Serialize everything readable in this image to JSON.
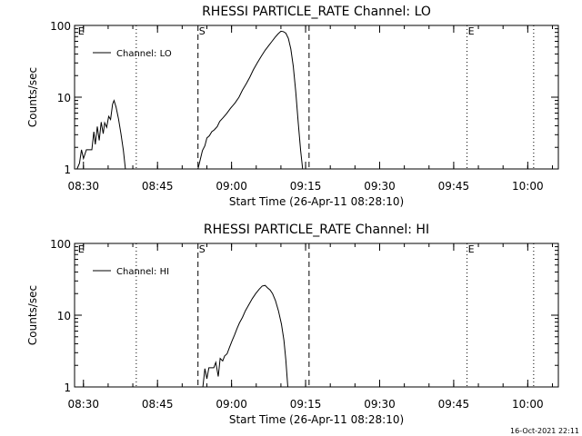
{
  "chart_data": [
    {
      "type": "line",
      "title": "RHESSI PARTICLE_RATE Channel: LO",
      "xlabel": "Start Time (26-Apr-11 08:28:10)",
      "ylabel": "Counts/sec",
      "yscale": "log",
      "ylim": [
        1,
        100
      ],
      "xlim_minutes": [
        0,
        98
      ],
      "yticks": [
        {
          "value": 1,
          "label": "1"
        },
        {
          "value": 10,
          "label": "10"
        },
        {
          "value": 100,
          "label": "100"
        }
      ],
      "xticks": [
        {
          "minute": 1.8,
          "label": "08:30"
        },
        {
          "minute": 16.8,
          "label": "08:45"
        },
        {
          "minute": 31.8,
          "label": "09:00"
        },
        {
          "minute": 46.8,
          "label": "09:15"
        },
        {
          "minute": 61.8,
          "label": "09:30"
        },
        {
          "minute": 76.8,
          "label": "09:45"
        },
        {
          "minute": 91.8,
          "label": "10:00"
        }
      ],
      "legend": "Channel: LO",
      "legend_position": "top-left",
      "markers": [
        {
          "minute": 0.5,
          "label": "E",
          "style": "none"
        },
        {
          "minute": 12.5,
          "label": "",
          "style": "dotted"
        },
        {
          "minute": 25.0,
          "label": "S",
          "style": "dashed"
        },
        {
          "minute": 47.5,
          "label": "",
          "style": "dashed"
        },
        {
          "minute": 79.5,
          "label": "E",
          "style": "dotted"
        },
        {
          "minute": 93.0,
          "label": "",
          "style": "dotted"
        }
      ],
      "series": [
        {
          "name": "Channel: LO",
          "segments": [
            [
              [
                0.5,
                1.0
              ],
              [
                1.0,
                1.2
              ],
              [
                1.4,
                1.85
              ],
              [
                1.8,
                1.4
              ],
              [
                2.4,
                1.85
              ],
              [
                3.0,
                1.85
              ],
              [
                3.5,
                1.85
              ],
              [
                3.9,
                3.3
              ],
              [
                4.2,
                2.2
              ],
              [
                4.6,
                3.9
              ],
              [
                5.0,
                2.5
              ],
              [
                5.4,
                4.5
              ],
              [
                5.8,
                3.1
              ],
              [
                6.1,
                4.4
              ],
              [
                6.5,
                3.8
              ],
              [
                6.9,
                5.4
              ],
              [
                7.3,
                4.9
              ],
              [
                7.7,
                8.0
              ],
              [
                8.0,
                9.0
              ],
              [
                8.4,
                7.3
              ],
              [
                8.9,
                5.0
              ],
              [
                9.4,
                3.1
              ],
              [
                9.9,
                1.8
              ],
              [
                10.3,
                1.0
              ]
            ],
            [
              [
                25.0,
                1.0
              ],
              [
                25.4,
                1.3
              ],
              [
                25.9,
                1.8
              ],
              [
                26.4,
                2.1
              ],
              [
                26.8,
                2.7
              ],
              [
                27.3,
                2.9
              ],
              [
                27.8,
                3.3
              ],
              [
                28.3,
                3.5
              ],
              [
                28.9,
                3.9
              ],
              [
                29.4,
                4.6
              ],
              [
                30.0,
                5.1
              ],
              [
                30.8,
                5.9
              ],
              [
                31.6,
                7.0
              ],
              [
                32.5,
                8.3
              ],
              [
                33.3,
                10.0
              ],
              [
                34.0,
                12.5
              ],
              [
                34.8,
                15.5
              ],
              [
                35.5,
                19.0
              ],
              [
                36.2,
                24.0
              ],
              [
                37.0,
                30.0
              ],
              [
                37.8,
                37.0
              ],
              [
                38.6,
                45.0
              ],
              [
                39.3,
                52.0
              ],
              [
                40.0,
                60.0
              ],
              [
                40.6,
                68.0
              ],
              [
                41.2,
                76.0
              ],
              [
                41.8,
                83.0
              ],
              [
                42.3,
                82.0
              ],
              [
                42.8,
                78.0
              ],
              [
                43.3,
                66.0
              ],
              [
                43.8,
                47.0
              ],
              [
                44.3,
                27.0
              ],
              [
                44.8,
                12.0
              ],
              [
                45.3,
                4.5
              ],
              [
                45.8,
                1.8
              ],
              [
                46.2,
                1.0
              ]
            ]
          ]
        }
      ]
    },
    {
      "type": "line",
      "title": "RHESSI PARTICLE_RATE Channel: HI",
      "xlabel": "Start Time (26-Apr-11 08:28:10)",
      "ylabel": "Counts/sec",
      "yscale": "log",
      "ylim": [
        1,
        100
      ],
      "xlim_minutes": [
        0,
        98
      ],
      "yticks": [
        {
          "value": 1,
          "label": "1"
        },
        {
          "value": 10,
          "label": "10"
        },
        {
          "value": 100,
          "label": "100"
        }
      ],
      "xticks": [
        {
          "minute": 1.8,
          "label": "08:30"
        },
        {
          "minute": 16.8,
          "label": "08:45"
        },
        {
          "minute": 31.8,
          "label": "09:00"
        },
        {
          "minute": 46.8,
          "label": "09:15"
        },
        {
          "minute": 61.8,
          "label": "09:30"
        },
        {
          "minute": 76.8,
          "label": "09:45"
        },
        {
          "minute": 91.8,
          "label": "10:00"
        }
      ],
      "legend": "Channel: HI",
      "legend_position": "top-left",
      "markers": [
        {
          "minute": 0.5,
          "label": "E",
          "style": "none"
        },
        {
          "minute": 12.5,
          "label": "",
          "style": "dotted"
        },
        {
          "minute": 25.0,
          "label": "S",
          "style": "dashed"
        },
        {
          "minute": 47.5,
          "label": "",
          "style": "dashed"
        },
        {
          "minute": 79.5,
          "label": "E",
          "style": "dotted"
        },
        {
          "minute": 93.0,
          "label": "",
          "style": "dotted"
        }
      ],
      "series": [
        {
          "name": "Channel: HI",
          "segments": [
            [
              [
                26.0,
                1.0
              ],
              [
                26.4,
                1.8
              ],
              [
                26.8,
                1.3
              ],
              [
                27.2,
                1.85
              ],
              [
                27.7,
                1.85
              ],
              [
                28.2,
                1.85
              ],
              [
                28.6,
                2.2
              ],
              [
                29.1,
                1.4
              ],
              [
                29.5,
                2.5
              ],
              [
                30.0,
                2.3
              ],
              [
                30.4,
                2.7
              ],
              [
                30.9,
                2.9
              ],
              [
                31.4,
                3.6
              ],
              [
                31.9,
                4.4
              ],
              [
                32.4,
                5.3
              ],
              [
                32.9,
                6.5
              ],
              [
                33.4,
                7.8
              ],
              [
                34.0,
                9.3
              ],
              [
                34.6,
                11.5
              ],
              [
                35.3,
                14.0
              ],
              [
                36.0,
                17.0
              ],
              [
                36.7,
                20.0
              ],
              [
                37.4,
                23.0
              ],
              [
                38.0,
                25.5
              ],
              [
                38.6,
                26.0
              ],
              [
                39.1,
                24.0
              ],
              [
                39.6,
                22.5
              ],
              [
                40.1,
                20.0
              ],
              [
                40.7,
                16.0
              ],
              [
                41.3,
                11.5
              ],
              [
                41.9,
                7.5
              ],
              [
                42.4,
                4.5
              ],
              [
                42.8,
                2.4
              ],
              [
                43.2,
                1.0
              ]
            ]
          ]
        }
      ]
    }
  ],
  "timestamp": "16-Oct-2021 22:11"
}
